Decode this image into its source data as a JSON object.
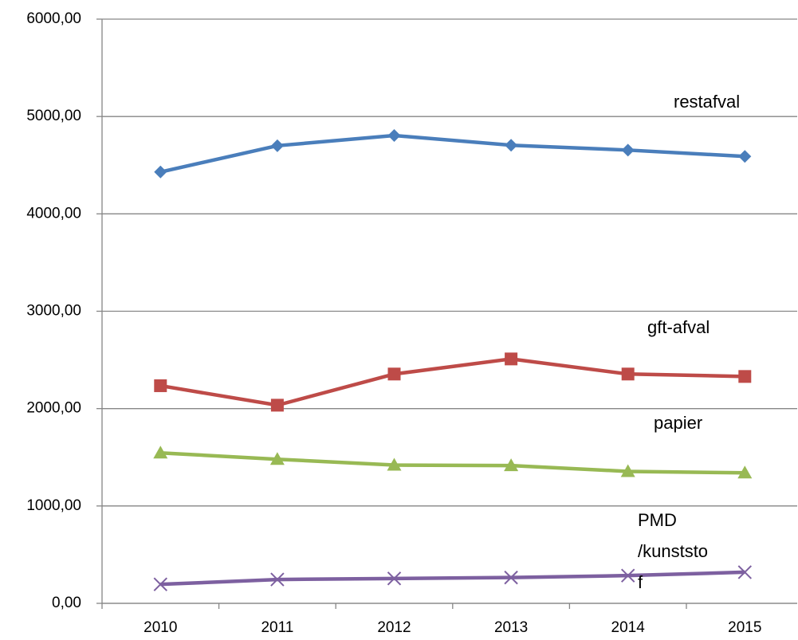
{
  "chart_data": {
    "type": "line",
    "categories": [
      "2010",
      "2011",
      "2012",
      "2013",
      "2014",
      "2015"
    ],
    "series": [
      {
        "name": "restafval",
        "color": "#4a7ebb",
        "marker": "diamond",
        "values": [
          4430,
          4700,
          4805,
          4705,
          4655,
          4590
        ]
      },
      {
        "name": "gft-afval",
        "color": "#be4b48",
        "marker": "square",
        "values": [
          2235,
          2035,
          2355,
          2510,
          2355,
          2330
        ]
      },
      {
        "name": "papier",
        "color": "#98b954",
        "marker": "triangle",
        "values": [
          1545,
          1480,
          1420,
          1415,
          1355,
          1340
        ]
      },
      {
        "name": "PMD /kunststof",
        "color": "#7d60a0",
        "marker": "x",
        "values": [
          195,
          245,
          255,
          265,
          285,
          320
        ]
      }
    ],
    "ylim": [
      0,
      6000
    ],
    "yticks": [
      {
        "value": 0,
        "label": "0,00"
      },
      {
        "value": 1000,
        "label": "1000,00"
      },
      {
        "value": 2000,
        "label": "2000,00"
      },
      {
        "value": 3000,
        "label": "3000,00"
      },
      {
        "value": 4000,
        "label": "4000,00"
      },
      {
        "value": 5000,
        "label": "5000,00"
      },
      {
        "value": 6000,
        "label": "6000,00"
      }
    ],
    "grid": true
  }
}
